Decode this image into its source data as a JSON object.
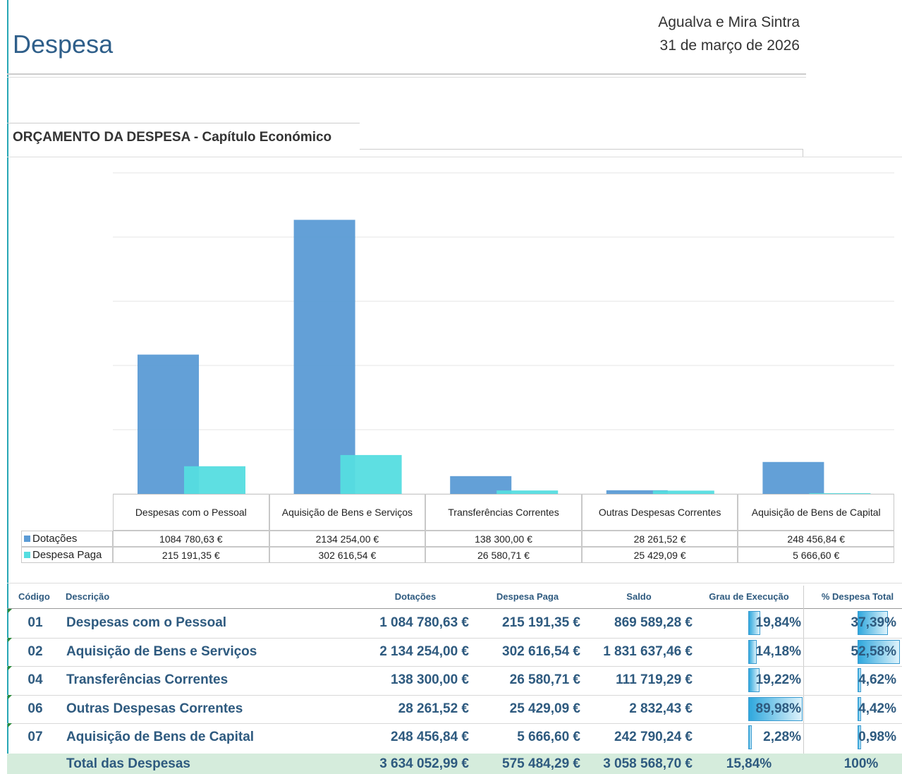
{
  "header": {
    "title": "Despesa",
    "location": "Agualva e Mira Sintra",
    "date": "31 de março de 2026"
  },
  "section_title": "ORÇAMENTO DA DESPESA - Capítulo Económico",
  "chart_data": {
    "type": "bar",
    "categories": [
      "Despesas com o Pessoal",
      "Aquisição de Bens e Serviços",
      "Transferências Correntes",
      "Outras Despesas Correntes",
      "Aquisição de Bens de Capital"
    ],
    "series": [
      {
        "name": "Dotações",
        "color": "#5b9bd5",
        "values": [
          1084780.63,
          2134254.0,
          138300.0,
          28261.52,
          248456.84
        ],
        "value_labels": [
          "1084 780,63 €",
          "2134 254,00 €",
          "138 300,00 €",
          "28 261,52 €",
          "248 456,84 €"
        ]
      },
      {
        "name": "Despesa Paga",
        "color": "#55dde0",
        "values": [
          215191.35,
          302616.54,
          26580.71,
          25429.09,
          5666.6
        ],
        "value_labels": [
          "215 191,35 €",
          "302 616,54 €",
          "26 580,71 €",
          "25 429,09 €",
          "5 666,60 €"
        ]
      }
    ],
    "ylim": [
      0,
      2500000
    ],
    "yticks": [
      0,
      500000,
      1000000,
      1500000,
      2000000,
      2500000
    ],
    "grid": true
  },
  "table": {
    "columns": [
      "Código",
      "Descrição",
      "Dotações",
      "Despesa Paga",
      "Saldo",
      "Grau de Execução",
      "% Despesa Total"
    ],
    "rows": [
      [
        "01",
        "Despesas com o Pessoal",
        "1 084 780,63 €",
        "215 191,35 €",
        "869 589,28 €",
        "19,84%",
        "37,39%"
      ],
      [
        "02",
        "Aquisição de Bens e Serviços",
        "2 134 254,00 €",
        "302 616,54 €",
        "1 831 637,46 €",
        "14,18%",
        "52,58%"
      ],
      [
        "04",
        "Transferências Correntes",
        "138 300,00 €",
        "26 580,71 €",
        "111 719,29 €",
        "19,22%",
        "4,62%"
      ],
      [
        "06",
        "Outras Despesas Correntes",
        "28 261,52 €",
        "25 429,09 €",
        "2 832,43 €",
        "89,98%",
        "4,42%"
      ],
      [
        "07",
        "Aquisição de Bens de Capital",
        "248 456,84 €",
        "5 666,60 €",
        "242 790,24 €",
        "2,28%",
        "0,98%"
      ]
    ],
    "total": [
      "Total das Despesas",
      "3 634 052,99 €",
      "575 484,29 €",
      "3 058 568,70 €",
      "15,84%",
      "100%"
    ]
  }
}
